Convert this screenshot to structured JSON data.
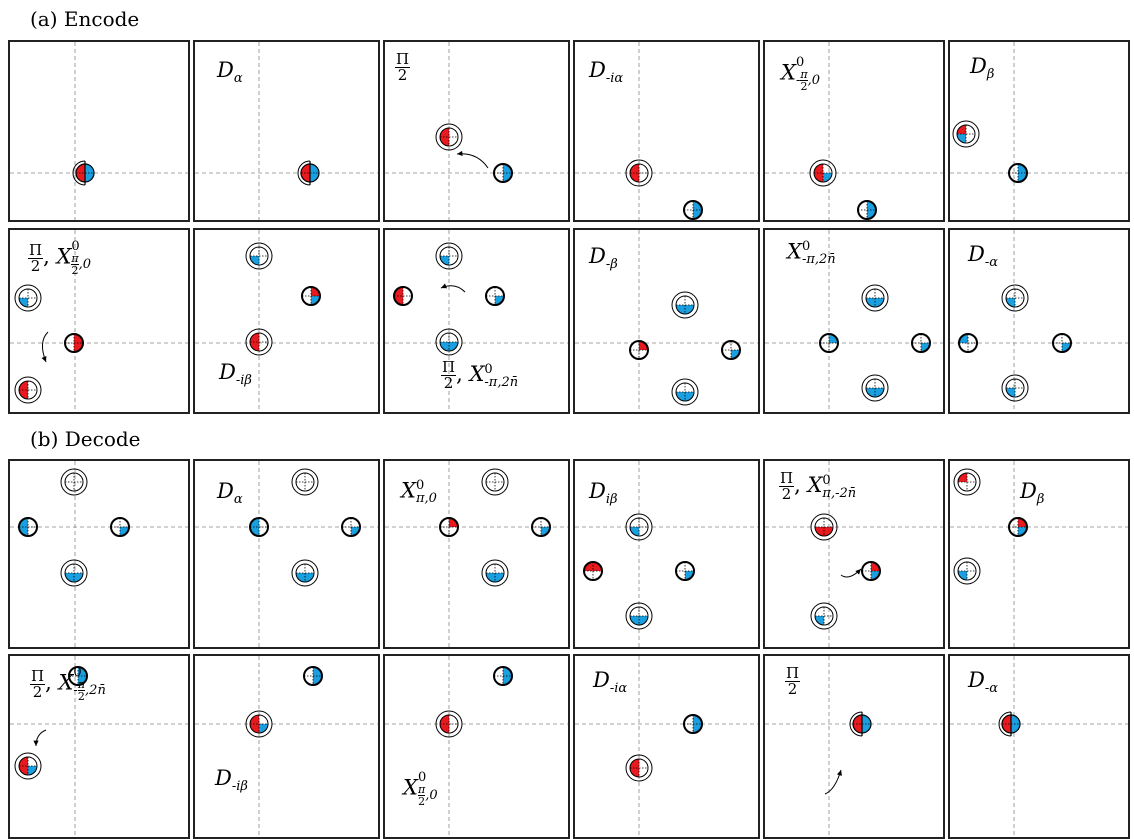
{
  "sections": {
    "encode": "(a)  Encode",
    "decode": "(b)  Decode"
  },
  "colors": {
    "red": "#e8191f",
    "blue": "#1aa0e0",
    "line": "#888888"
  },
  "labels": {
    "a1_2": {
      "base": "D",
      "sub": "α"
    },
    "a1_3": {
      "frac": [
        "Π",
        "2"
      ]
    },
    "a1_4": {
      "base": "D",
      "sub": "-iα"
    },
    "a1_5": {
      "base": "X",
      "sup": "0",
      "sub": "-π/2,0"
    },
    "a1_6": {
      "base": "D",
      "sub": "β"
    },
    "a2_1": {
      "frac": [
        "Π",
        "2"
      ],
      "sep": ", ",
      "base": "X",
      "sup": "0",
      "sub": "π/2,0"
    },
    "a2_2": {
      "base": "D",
      "sub": "-iβ"
    },
    "a2_3": {
      "frac": [
        "Π",
        "2"
      ],
      "sep": ", ",
      "base": "X",
      "sup": "0",
      "sub": "-π,2n̄"
    },
    "a2_4": {
      "base": "D",
      "sub": "-β"
    },
    "a2_5": {
      "base": "X",
      "sup": "0",
      "sub": "-π,2n̄"
    },
    "a2_6": {
      "base": "D",
      "sub": "-α"
    },
    "b1_2": {
      "base": "D",
      "sub": "α"
    },
    "b1_3": {
      "base": "X",
      "sup": "0",
      "sub": "π,0"
    },
    "b1_4": {
      "base": "D",
      "sub": "iβ"
    },
    "b1_5": {
      "frac": [
        "Π",
        "2"
      ],
      "sep": ", ",
      "base": "X",
      "sup": "0",
      "sub": "π,-2n̄"
    },
    "b1_6": {
      "base": "D",
      "sub": "β"
    },
    "b2_1": {
      "frac": [
        "Π",
        "2"
      ],
      "sep": ", ",
      "base": "X",
      "sup": "0",
      "sub": "-π/2,2n̄"
    },
    "b2_2": {
      "base": "D",
      "sub": "-iβ"
    },
    "b2_3": {
      "base": "X",
      "sup": "0",
      "sub": "π/2,0"
    },
    "b2_4": {
      "base": "D",
      "sub": "-iα"
    },
    "b2_5": {
      "frac": [
        "Π",
        "2"
      ]
    },
    "b2_6": {
      "base": "D",
      "sub": "-α"
    }
  }
}
